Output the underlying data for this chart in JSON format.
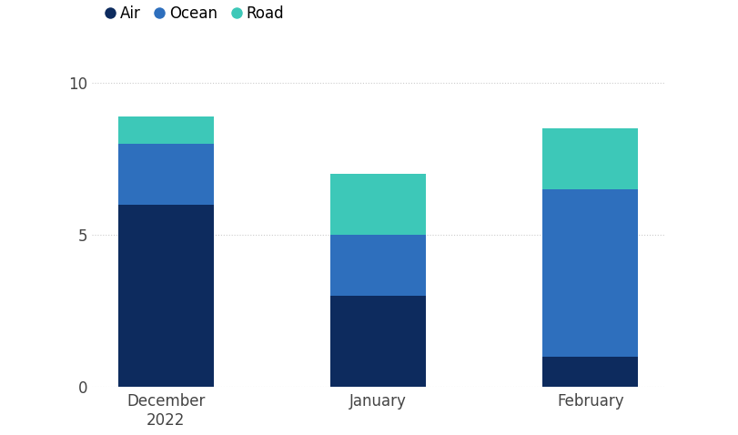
{
  "months": [
    "December\n2022",
    "January",
    "February"
  ],
  "air": [
    6,
    3,
    1
  ],
  "ocean": [
    2,
    2,
    5.5
  ],
  "road": [
    0.9,
    2,
    2
  ],
  "colors": {
    "air": "#0d2b5e",
    "ocean": "#2e6fbd",
    "road": "#3dc8b8"
  },
  "legend_labels": [
    "Air",
    "Ocean",
    "Road"
  ],
  "ylim": [
    0,
    11
  ],
  "yticks": [
    0,
    5,
    10
  ],
  "bar_width": 0.45,
  "background_color": "#ffffff",
  "grid_color": "#cccccc",
  "text_color": "#444444",
  "title_color": "#222222"
}
